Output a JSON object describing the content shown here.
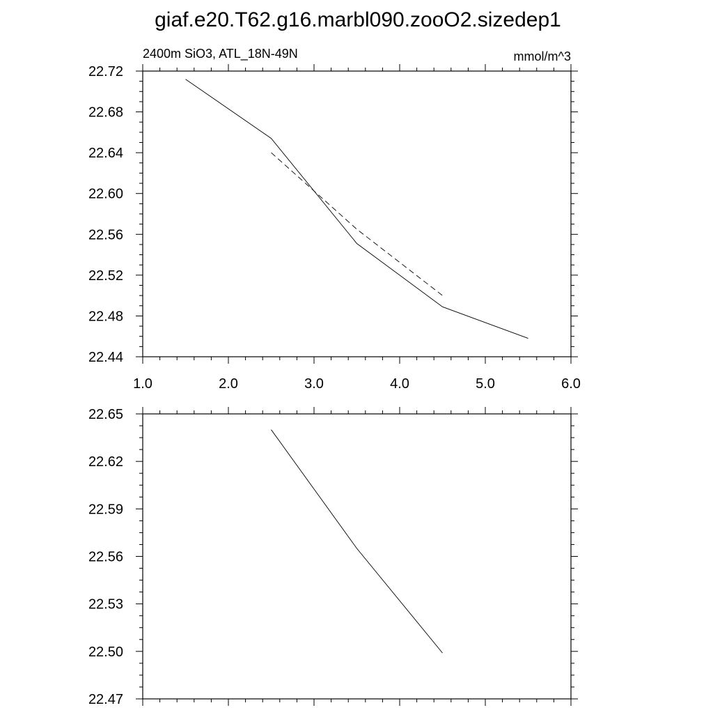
{
  "title": "giaf.e20.T62.g16.marbl090.zooO2.sizedep1",
  "chart_data": [
    {
      "type": "line",
      "left_label": "2400m SiO3, ATL_18N-49N",
      "right_label": "mmol/m^3",
      "xlim": [
        1.0,
        6.0
      ],
      "ylim": [
        22.44,
        22.72
      ],
      "x_ticks": [
        "1.0",
        "2.0",
        "3.0",
        "4.0",
        "5.0",
        "6.0"
      ],
      "y_ticks": [
        "22.72",
        "22.68",
        "22.64",
        "22.60",
        "22.56",
        "22.52",
        "22.48",
        "22.44"
      ],
      "grid": false,
      "series": [
        {
          "style": "solid",
          "x": [
            1.5,
            2.5,
            3.5,
            4.5,
            5.5
          ],
          "y": [
            22.712,
            22.654,
            22.551,
            22.489,
            22.458
          ]
        },
        {
          "style": "dashed",
          "x": [
            2.5,
            3.5,
            4.5
          ],
          "y": [
            22.64,
            22.565,
            22.5
          ]
        }
      ]
    },
    {
      "type": "line",
      "xlim": [
        1.0,
        6.0
      ],
      "ylim": [
        22.47,
        22.65
      ],
      "y_ticks": [
        "22.65",
        "22.62",
        "22.59",
        "22.56",
        "22.53",
        "22.50",
        "22.47"
      ],
      "grid": false,
      "series": [
        {
          "style": "solid",
          "x": [
            2.5,
            3.5,
            4.5
          ],
          "y": [
            22.64,
            22.565,
            22.499
          ]
        }
      ]
    }
  ]
}
